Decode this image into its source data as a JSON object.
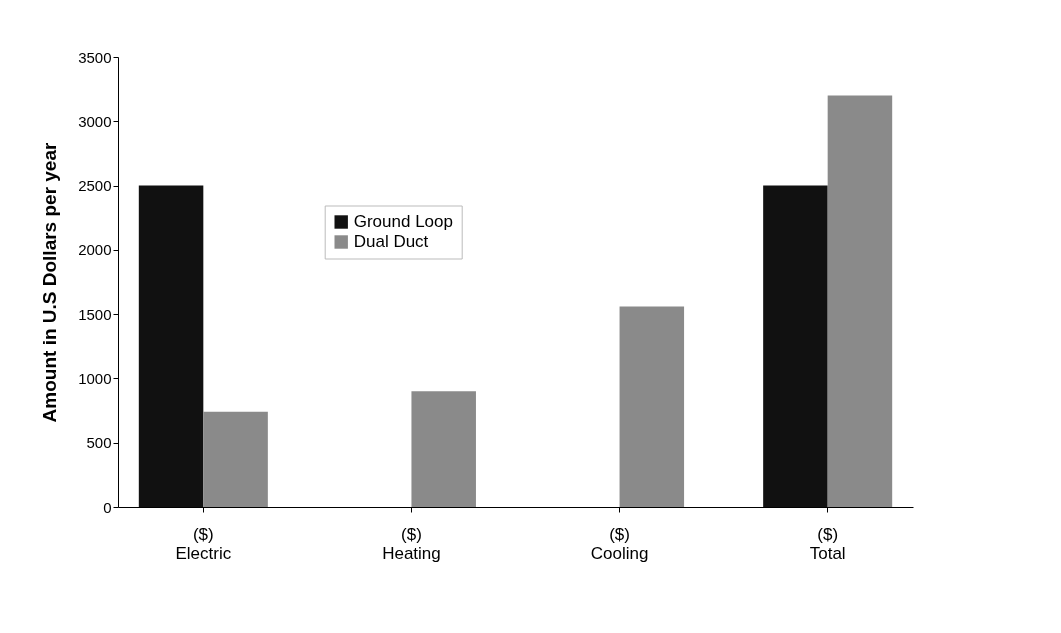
{
  "chart_data": {
    "type": "bar",
    "ylabel": "Amount in U.S Dollars per year",
    "categories": [
      "($)\nElectric",
      "($)\nHeating",
      "($)\nCooling",
      "($)\nTotal"
    ],
    "series": [
      {
        "name": "Ground Loop",
        "color": "#111111",
        "values": [
          2500,
          0,
          0,
          2500
        ]
      },
      {
        "name": "Dual Duct",
        "color": "#8a8a8a",
        "values": [
          740,
          900,
          1560,
          3200
        ]
      }
    ],
    "ylim": [
      0,
      3500
    ],
    "yticks": [
      0,
      500,
      1000,
      1500,
      2000,
      2500,
      3000,
      3500
    ],
    "grid": false,
    "legend": "top"
  }
}
